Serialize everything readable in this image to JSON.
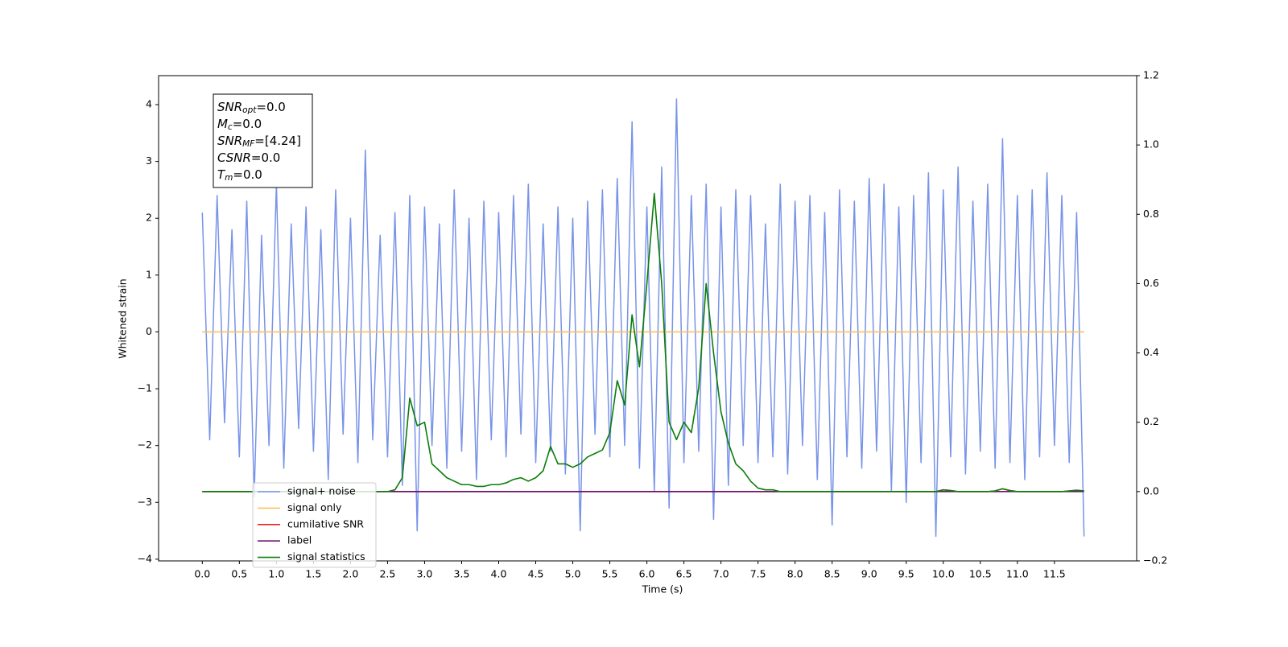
{
  "chart_data": {
    "type": "line",
    "xlabel": "Time (s)",
    "ylabel": "Whitened strain",
    "xlim": [
      -0.59,
      12.61
    ],
    "ylim": [
      -4.03,
      4.51
    ],
    "y2lim": [
      -0.2,
      1.2
    ],
    "xticks": [
      {
        "value": 0,
        "label": "0.0"
      },
      0.5,
      {
        "value": 1,
        "label": "1.0"
      },
      1.5,
      {
        "value": 2,
        "label": "2.0"
      },
      2.5,
      {
        "value": 3,
        "label": "3.0"
      },
      3.5,
      {
        "value": 4,
        "label": "4.0"
      },
      4.5,
      {
        "value": 5,
        "label": "5.0"
      },
      5.5,
      {
        "value": 6,
        "label": "6.0"
      },
      6.5,
      {
        "value": 7,
        "label": "7.0"
      },
      7.5,
      {
        "value": 8,
        "label": "8.0"
      },
      8.5,
      {
        "value": 9,
        "label": "9.0"
      },
      9.5,
      {
        "value": 10,
        "label": "10.0"
      },
      10.5,
      {
        "value": 11,
        "label": "11.0"
      },
      11.5
    ],
    "yticks": [
      {
        "value": -4,
        "label": "−4"
      },
      {
        "value": -3,
        "label": "−3"
      },
      {
        "value": -2,
        "label": "−2"
      },
      {
        "value": -1,
        "label": "−1"
      },
      0,
      1,
      2,
      3,
      4
    ],
    "y2ticks": [
      {
        "value": -0.2,
        "label": "−0.2"
      },
      {
        "value": 0,
        "label": "0.0"
      },
      {
        "value": 0.2,
        "label": "0.2"
      },
      {
        "value": 0.4,
        "label": "0.4"
      },
      {
        "value": 0.6,
        "label": "0.6"
      },
      {
        "value": 0.8,
        "label": "0.8"
      },
      {
        "value": 1,
        "label": "1.0"
      },
      {
        "value": 1.2,
        "label": "1.2"
      }
    ],
    "legend": "lower left",
    "annotations": [
      {
        "symbol": "SNR",
        "subscript": "opt",
        "rest": "=0.0"
      },
      {
        "symbol": "M",
        "subscript": "c",
        "rest": "=0.0"
      },
      {
        "symbol": "SNR",
        "subscript": "MF",
        "rest": "=[4.24]"
      },
      {
        "symbol": "CSNR",
        "rest": "=0.0"
      },
      {
        "symbol": "T",
        "subscript": "m",
        "rest": "=0.0"
      }
    ],
    "x": [
      0.0,
      0.1,
      0.2,
      0.3,
      0.4,
      0.5,
      0.6,
      0.7,
      0.8,
      0.9,
      1.0,
      1.1,
      1.2,
      1.3,
      1.4,
      1.5,
      1.6,
      1.7,
      1.8,
      1.9,
      2.0,
      2.1,
      2.2,
      2.3,
      2.4,
      2.5,
      2.6,
      2.7,
      2.8,
      2.9,
      3.0,
      3.1,
      3.2,
      3.3,
      3.4,
      3.5,
      3.6,
      3.7,
      3.8,
      3.9,
      4.0,
      4.1,
      4.2,
      4.3,
      4.4,
      4.5,
      4.6,
      4.7,
      4.8,
      4.9,
      5.0,
      5.1,
      5.2,
      5.3,
      5.4,
      5.5,
      5.6,
      5.7,
      5.8,
      5.9,
      6.0,
      6.1,
      6.2,
      6.3,
      6.4,
      6.5,
      6.6,
      6.7,
      6.8,
      6.9,
      7.0,
      7.1,
      7.2,
      7.3,
      7.4,
      7.5,
      7.6,
      7.7,
      7.8,
      7.9,
      8.0,
      8.1,
      8.2,
      8.3,
      8.4,
      8.5,
      8.6,
      8.7,
      8.8,
      8.9,
      9.0,
      9.1,
      9.2,
      9.3,
      9.4,
      9.5,
      9.6,
      9.7,
      9.8,
      9.9,
      10.0,
      10.1,
      10.2,
      10.3,
      10.4,
      10.5,
      10.6,
      10.7,
      10.8,
      10.9,
      11.0,
      11.1,
      11.2,
      11.3,
      11.4,
      11.5,
      11.6,
      11.7,
      11.8,
      11.9
    ],
    "series": [
      {
        "name": "signal+ noise",
        "color": "#7893e8",
        "values": [
          2.1,
          -1.9,
          2.4,
          -1.6,
          1.8,
          -2.2,
          2.3,
          -2.9,
          1.7,
          -2.0,
          2.6,
          -2.4,
          1.9,
          -1.7,
          2.2,
          -2.1,
          1.8,
          -2.6,
          2.5,
          -1.8,
          2.0,
          -2.3,
          3.2,
          -1.9,
          1.7,
          -2.2,
          2.1,
          -2.7,
          2.4,
          -3.5,
          2.2,
          -2.0,
          1.9,
          -2.4,
          2.5,
          -2.1,
          2.0,
          -2.6,
          2.3,
          -1.9,
          2.1,
          -2.2,
          2.4,
          -1.8,
          2.6,
          -2.3,
          1.9,
          -2.1,
          2.2,
          -2.5,
          2.0,
          -3.5,
          2.3,
          -1.8,
          2.5,
          -2.2,
          2.7,
          -2.0,
          3.7,
          -2.4,
          2.2,
          -2.8,
          2.9,
          -3.1,
          4.1,
          -2.3,
          2.4,
          -2.1,
          2.6,
          -3.3,
          2.2,
          -2.7,
          2.5,
          -2.0,
          2.4,
          -2.3,
          1.9,
          -2.2,
          2.6,
          -2.5,
          2.3,
          -2.0,
          2.4,
          -2.6,
          2.1,
          -3.4,
          2.5,
          -2.2,
          2.3,
          -2.4,
          2.7,
          -2.1,
          2.6,
          -2.8,
          2.2,
          -3.0,
          2.4,
          -2.3,
          2.8,
          -3.6,
          2.5,
          -2.2,
          2.9,
          -2.5,
          2.3,
          -2.1,
          2.6,
          -2.4,
          3.4,
          -2.3,
          2.4,
          -2.6,
          2.5,
          -2.2,
          2.8,
          -2.0,
          2.4,
          -2.3,
          2.1,
          -3.6
        ]
      },
      {
        "name": "signal only",
        "color": "#ffbf5a",
        "values": [
          0,
          0,
          0,
          0,
          0,
          0,
          0,
          0,
          0,
          0,
          0,
          0,
          0,
          0,
          0,
          0,
          0,
          0,
          0,
          0,
          0,
          0,
          0,
          0,
          0,
          0,
          0,
          0,
          0,
          0,
          0,
          0,
          0,
          0,
          0,
          0,
          0,
          0,
          0,
          0,
          0,
          0,
          0,
          0,
          0,
          0,
          0,
          0,
          0,
          0,
          0,
          0,
          0,
          0,
          0,
          0,
          0,
          0,
          0,
          0,
          0,
          0,
          0,
          0,
          0,
          0,
          0,
          0,
          0,
          0,
          0,
          0,
          0,
          0,
          0,
          0,
          0,
          0,
          0,
          0,
          0,
          0,
          0,
          0,
          0,
          0,
          0,
          0,
          0,
          0,
          0,
          0,
          0,
          0,
          0,
          0,
          0,
          0,
          0,
          0,
          0,
          0,
          0,
          0,
          0,
          0,
          0,
          0,
          0,
          0,
          0,
          0,
          0,
          0,
          0,
          0,
          0,
          0,
          0,
          0
        ]
      },
      {
        "name": "cumilative SNR",
        "color": "#e8251f",
        "axis": "y2",
        "values": [
          0,
          0,
          0,
          0,
          0,
          0,
          0,
          0,
          0,
          0,
          0,
          0,
          0,
          0,
          0,
          0,
          0,
          0,
          0,
          0,
          0,
          0,
          0,
          0,
          0,
          0,
          0,
          0,
          0,
          0,
          0,
          0,
          0,
          0,
          0,
          0,
          0,
          0,
          0,
          0,
          0,
          0,
          0,
          0,
          0,
          0,
          0,
          0,
          0,
          0,
          0,
          0,
          0,
          0,
          0,
          0,
          0,
          0,
          0,
          0,
          0,
          0,
          0,
          0,
          0,
          0,
          0,
          0,
          0,
          0,
          0,
          0,
          0,
          0,
          0,
          0,
          0,
          0,
          0,
          0,
          0,
          0,
          0,
          0,
          0,
          0,
          0,
          0,
          0,
          0,
          0,
          0,
          0,
          0,
          0,
          0,
          0,
          0,
          0,
          0,
          0.005,
          0.003,
          0,
          0,
          0,
          0,
          0,
          0.002,
          0.008,
          0.003,
          0,
          0,
          0,
          0,
          0,
          0,
          0,
          0.002,
          0.004,
          0.002
        ]
      },
      {
        "name": "label",
        "color": "#6a0f6e",
        "axis": "y2",
        "values": [
          0,
          0,
          0,
          0,
          0,
          0,
          0,
          0,
          0,
          0,
          0,
          0,
          0,
          0,
          0,
          0,
          0,
          0,
          0,
          0,
          0,
          0,
          0,
          0,
          0,
          0,
          0,
          0,
          0,
          0,
          0,
          0,
          0,
          0,
          0,
          0,
          0,
          0,
          0,
          0,
          0,
          0,
          0,
          0,
          0,
          0,
          0,
          0,
          0,
          0,
          0,
          0,
          0,
          0,
          0,
          0,
          0,
          0,
          0,
          0,
          0,
          0,
          0,
          0,
          0,
          0,
          0,
          0,
          0,
          0,
          0,
          0,
          0,
          0,
          0,
          0,
          0,
          0,
          0,
          0,
          0,
          0,
          0,
          0,
          0,
          0,
          0,
          0,
          0,
          0,
          0,
          0,
          0,
          0,
          0,
          0,
          0,
          0,
          0,
          0,
          0,
          0,
          0,
          0,
          0,
          0,
          0,
          0,
          0,
          0,
          0,
          0,
          0,
          0,
          0,
          0,
          0,
          0,
          0,
          0
        ]
      },
      {
        "name": "signal statistics",
        "color": "#0a7d0a",
        "axis": "y2",
        "values": [
          0,
          0,
          0,
          0,
          0,
          0,
          0,
          0,
          0,
          0,
          0,
          0,
          0,
          0,
          0,
          0,
          0,
          0,
          0,
          0,
          0,
          0,
          0,
          0,
          0,
          0,
          0.005,
          0.04,
          0.27,
          0.19,
          0.2,
          0.08,
          0.06,
          0.04,
          0.03,
          0.02,
          0.02,
          0.015,
          0.015,
          0.02,
          0.02,
          0.025,
          0.035,
          0.04,
          0.03,
          0.04,
          0.06,
          0.13,
          0.08,
          0.08,
          0.07,
          0.08,
          0.1,
          0.11,
          0.12,
          0.17,
          0.32,
          0.25,
          0.51,
          0.36,
          0.6,
          0.86,
          0.6,
          0.2,
          0.15,
          0.2,
          0.17,
          0.3,
          0.6,
          0.4,
          0.23,
          0.14,
          0.08,
          0.06,
          0.03,
          0.01,
          0.005,
          0.005,
          0,
          0,
          0,
          0,
          0,
          0,
          0,
          0,
          0,
          0,
          0,
          0,
          0,
          0,
          0,
          0,
          0,
          0,
          0,
          0,
          0,
          0,
          0.005,
          0.003,
          0,
          0,
          0,
          0,
          0,
          0.002,
          0.008,
          0.003,
          0,
          0,
          0,
          0,
          0,
          0,
          0,
          0.002,
          0.004,
          0.002
        ]
      }
    ]
  }
}
